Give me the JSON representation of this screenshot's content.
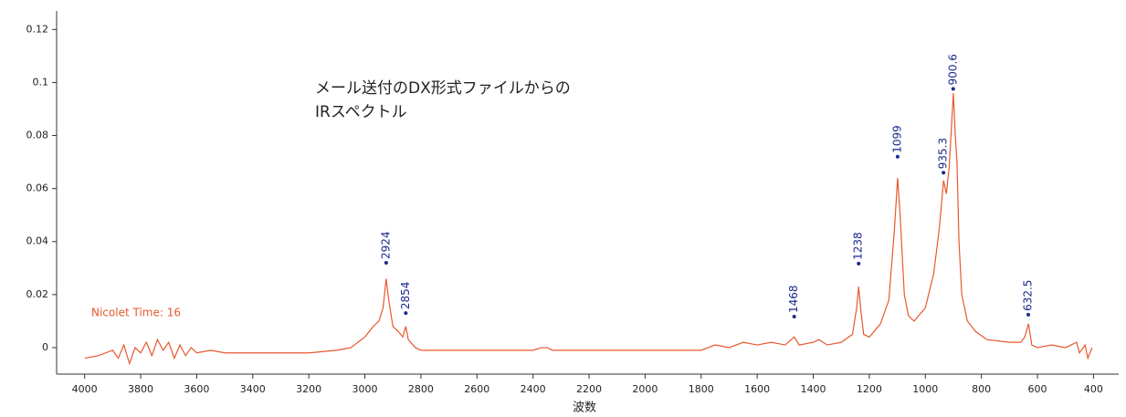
{
  "chart_data": {
    "type": "line",
    "annotations": [
      "メール送付のDX形式ファイルからの",
      "IRスペクトル"
    ],
    "note": "Nicolet Time: 16",
    "x_label": "波数",
    "xlim": [
      4100,
      310
    ],
    "ylim": [
      -0.01,
      0.127
    ],
    "xticks": [
      4000,
      3800,
      3600,
      3400,
      3200,
      3000,
      2800,
      2600,
      2400,
      2200,
      2000,
      1800,
      1600,
      1400,
      1200,
      1000,
      800,
      600,
      400
    ],
    "yticks": [
      0,
      0.02,
      0.04,
      0.06,
      0.08,
      0.1,
      0.12
    ],
    "series": [
      {
        "color": "#e8582e",
        "x": [
          4000,
          3950,
          3900,
          3880,
          3860,
          3840,
          3820,
          3800,
          3780,
          3760,
          3740,
          3720,
          3700,
          3680,
          3660,
          3640,
          3620,
          3600,
          3550,
          3500,
          3400,
          3300,
          3200,
          3100,
          3050,
          3000,
          2970,
          2950,
          2935,
          2924,
          2915,
          2900,
          2880,
          2865,
          2854,
          2845,
          2820,
          2800,
          2600,
          2400,
          2370,
          2350,
          2330,
          2200,
          2000,
          1800,
          1750,
          1700,
          1650,
          1600,
          1550,
          1500,
          1468,
          1450,
          1400,
          1380,
          1350,
          1300,
          1260,
          1245,
          1238,
          1230,
          1220,
          1200,
          1160,
          1130,
          1110,
          1099,
          1090,
          1075,
          1060,
          1040,
          1000,
          970,
          950,
          935,
          925,
          915,
          900,
          893,
          887,
          880,
          870,
          850,
          820,
          780,
          700,
          660,
          645,
          632,
          620,
          600,
          550,
          500,
          460,
          450,
          430,
          420,
          405
        ],
        "values": [
          -0.004,
          -0.003,
          -0.001,
          -0.004,
          0.001,
          -0.006,
          0.0,
          -0.002,
          0.002,
          -0.003,
          0.003,
          -0.001,
          0.002,
          -0.004,
          0.001,
          -0.003,
          0.0,
          -0.002,
          -0.001,
          -0.002,
          -0.002,
          -0.002,
          -0.002,
          -0.001,
          0.0,
          0.004,
          0.008,
          0.01,
          0.015,
          0.026,
          0.018,
          0.008,
          0.006,
          0.004,
          0.008,
          0.003,
          0.0,
          -0.001,
          -0.001,
          -0.001,
          0.0,
          0.0,
          -0.001,
          -0.001,
          -0.001,
          -0.001,
          0.001,
          0.0,
          0.002,
          0.001,
          0.002,
          0.001,
          0.004,
          0.001,
          0.002,
          0.003,
          0.001,
          0.002,
          0.005,
          0.015,
          0.023,
          0.014,
          0.005,
          0.004,
          0.009,
          0.018,
          0.045,
          0.064,
          0.05,
          0.02,
          0.012,
          0.01,
          0.015,
          0.028,
          0.045,
          0.063,
          0.058,
          0.068,
          0.096,
          0.08,
          0.07,
          0.04,
          0.02,
          0.01,
          0.006,
          0.003,
          0.002,
          0.002,
          0.004,
          0.009,
          0.001,
          0.0,
          0.001,
          0.0,
          0.002,
          -0.002,
          0.001,
          -0.004,
          0.0
        ]
      }
    ],
    "peaks": {
      "color": "#1a2a8c",
      "x": [
        2924,
        2854,
        1468,
        1238,
        1099,
        935.3,
        900.6,
        632.5
      ],
      "y": [
        0.032,
        0.013,
        0.0117,
        0.0317,
        0.072,
        0.066,
        0.0976,
        0.0124
      ]
    }
  }
}
